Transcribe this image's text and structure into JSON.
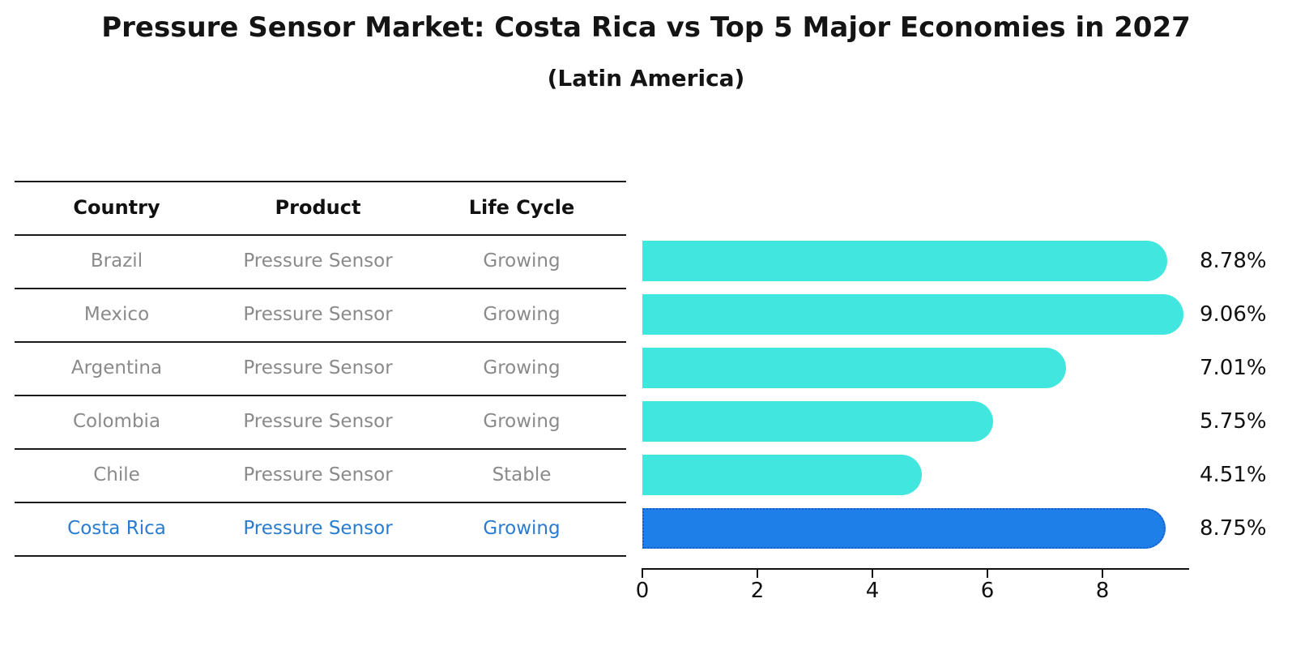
{
  "title": "Pressure Sensor Market: Costa Rica vs Top 5 Major Economies in 2027",
  "subtitle": "(Latin America)",
  "table": {
    "headers": [
      "Country",
      "Product",
      "Life Cycle"
    ],
    "rows": [
      {
        "country": "Brazil",
        "product": "Pressure Sensor",
        "life_cycle": "Growing"
      },
      {
        "country": "Mexico",
        "product": "Pressure Sensor",
        "life_cycle": "Growing"
      },
      {
        "country": "Argentina",
        "product": "Pressure Sensor",
        "life_cycle": "Growing"
      },
      {
        "country": "Colombia",
        "product": "Pressure Sensor",
        "life_cycle": "Growing"
      },
      {
        "country": "Chile",
        "product": "Pressure Sensor",
        "life_cycle": "Stable"
      },
      {
        "country": "Costa Rica",
        "product": "Pressure Sensor",
        "life_cycle": "Growing"
      }
    ],
    "highlight_row": "Costa Rica"
  },
  "chart_data": {
    "type": "bar",
    "orientation": "horizontal",
    "title": "Pressure Sensor Market: Costa Rica vs Top 5 Major Economies in 2027",
    "subtitle": "(Latin America)",
    "categories": [
      "Brazil",
      "Mexico",
      "Argentina",
      "Colombia",
      "Chile",
      "Costa Rica"
    ],
    "values": [
      8.78,
      9.06,
      7.01,
      5.75,
      4.51,
      8.75
    ],
    "value_labels": [
      "8.78%",
      "9.06%",
      "7.01%",
      "5.75%",
      "4.51%",
      "8.75%"
    ],
    "xticks": [
      "0",
      "2",
      "4",
      "6",
      "8"
    ],
    "xlim": [
      0,
      9.5
    ],
    "grid": false,
    "legend": null,
    "highlight_index": 5,
    "bar_color": "#41E6DF",
    "highlight_bar_color": "#1E7FE8",
    "highlight_border_color": "#1A5FC9",
    "highlight_text_color": "#2A7CD0",
    "row_text_color": "#8A8A8A",
    "axis_color": "#111111"
  }
}
